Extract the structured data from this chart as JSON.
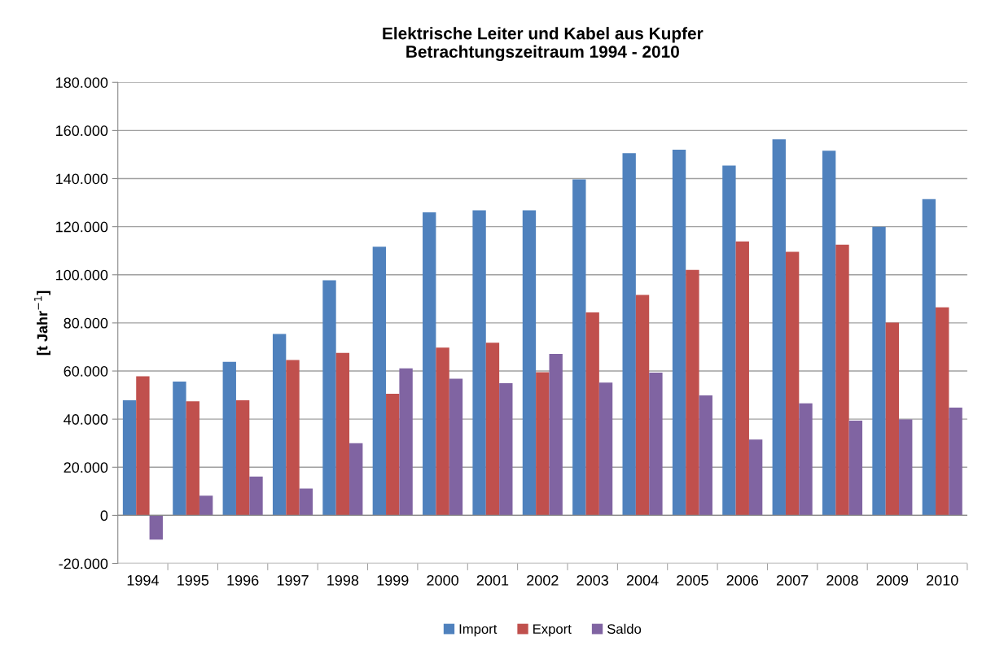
{
  "chart_data": {
    "type": "bar",
    "title": "Elektrische Leiter und Kabel aus Kupfer\nBetrachtungszeitraum 1994 - 2010",
    "ylabel": "[t Jahr$^{−1}$]",
    "categories": [
      "1994",
      "1995",
      "1996",
      "1997",
      "1998",
      "1999",
      "2000",
      "2001",
      "2002",
      "2003",
      "2004",
      "2005",
      "2006",
      "2007",
      "2008",
      "2009",
      "2010"
    ],
    "series": [
      {
        "name": "Import",
        "color": "#4f81bd",
        "values": [
          47800,
          55600,
          63800,
          75400,
          97700,
          111700,
          126000,
          126800,
          126800,
          139700,
          150600,
          152000,
          145400,
          156300,
          151600,
          120000,
          131500
        ]
      },
      {
        "name": "Export",
        "color": "#c0504d",
        "values": [
          57800,
          47400,
          47800,
          64600,
          67500,
          50500,
          69700,
          71800,
          59500,
          84400,
          91600,
          102000,
          113900,
          109600,
          112500,
          80100,
          86500
        ]
      },
      {
        "name": "Saldo",
        "color": "#8064a2",
        "values": [
          -10100,
          8200,
          16100,
          11100,
          30000,
          61100,
          56800,
          54900,
          67100,
          55200,
          59300,
          49900,
          31500,
          46600,
          39400,
          39900,
          44800
        ]
      }
    ],
    "ylim": [
      -20000,
      180000
    ],
    "yticks": [
      {
        "value": -20000,
        "label": "-20.000"
      },
      {
        "value": 0,
        "label": "0"
      },
      {
        "value": 20000,
        "label": "20.000"
      },
      {
        "value": 40000,
        "label": "40.000"
      },
      {
        "value": 60000,
        "label": "60.000"
      },
      {
        "value": 80000,
        "label": "80.000"
      },
      {
        "value": 100000,
        "label": "100.000"
      },
      {
        "value": 120000,
        "label": "120.000"
      },
      {
        "value": 140000,
        "label": "140.000"
      },
      {
        "value": 160000,
        "label": "160.000"
      },
      {
        "value": 180000,
        "label": "180.000"
      }
    ],
    "grid": "y",
    "legend": "bottom"
  }
}
